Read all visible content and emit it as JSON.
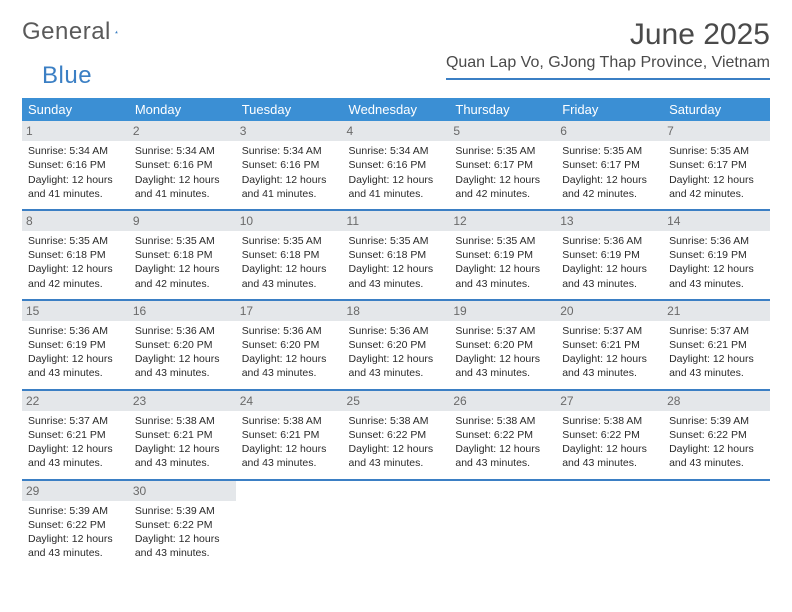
{
  "brand": {
    "part1": "General",
    "part2": "Blue"
  },
  "title": "June 2025",
  "location": "Quan Lap Vo, GJong Thap Province, Vietnam",
  "colors": {
    "header_bg": "#3b8fd4",
    "accent": "#3b7fc4",
    "daynum_bg": "#e4e7ea",
    "daynum_fg": "#6a6a6a",
    "text": "#2a2a2a",
    "title_fg": "#4a4a4a"
  },
  "weekdays": [
    "Sunday",
    "Monday",
    "Tuesday",
    "Wednesday",
    "Thursday",
    "Friday",
    "Saturday"
  ],
  "weeks": [
    [
      {
        "n": "1",
        "sr": "5:34 AM",
        "ss": "6:16 PM",
        "dl": "12 hours and 41 minutes."
      },
      {
        "n": "2",
        "sr": "5:34 AM",
        "ss": "6:16 PM",
        "dl": "12 hours and 41 minutes."
      },
      {
        "n": "3",
        "sr": "5:34 AM",
        "ss": "6:16 PM",
        "dl": "12 hours and 41 minutes."
      },
      {
        "n": "4",
        "sr": "5:34 AM",
        "ss": "6:16 PM",
        "dl": "12 hours and 41 minutes."
      },
      {
        "n": "5",
        "sr": "5:35 AM",
        "ss": "6:17 PM",
        "dl": "12 hours and 42 minutes."
      },
      {
        "n": "6",
        "sr": "5:35 AM",
        "ss": "6:17 PM",
        "dl": "12 hours and 42 minutes."
      },
      {
        "n": "7",
        "sr": "5:35 AM",
        "ss": "6:17 PM",
        "dl": "12 hours and 42 minutes."
      }
    ],
    [
      {
        "n": "8",
        "sr": "5:35 AM",
        "ss": "6:18 PM",
        "dl": "12 hours and 42 minutes."
      },
      {
        "n": "9",
        "sr": "5:35 AM",
        "ss": "6:18 PM",
        "dl": "12 hours and 42 minutes."
      },
      {
        "n": "10",
        "sr": "5:35 AM",
        "ss": "6:18 PM",
        "dl": "12 hours and 43 minutes."
      },
      {
        "n": "11",
        "sr": "5:35 AM",
        "ss": "6:18 PM",
        "dl": "12 hours and 43 minutes."
      },
      {
        "n": "12",
        "sr": "5:35 AM",
        "ss": "6:19 PM",
        "dl": "12 hours and 43 minutes."
      },
      {
        "n": "13",
        "sr": "5:36 AM",
        "ss": "6:19 PM",
        "dl": "12 hours and 43 minutes."
      },
      {
        "n": "14",
        "sr": "5:36 AM",
        "ss": "6:19 PM",
        "dl": "12 hours and 43 minutes."
      }
    ],
    [
      {
        "n": "15",
        "sr": "5:36 AM",
        "ss": "6:19 PM",
        "dl": "12 hours and 43 minutes."
      },
      {
        "n": "16",
        "sr": "5:36 AM",
        "ss": "6:20 PM",
        "dl": "12 hours and 43 minutes."
      },
      {
        "n": "17",
        "sr": "5:36 AM",
        "ss": "6:20 PM",
        "dl": "12 hours and 43 minutes."
      },
      {
        "n": "18",
        "sr": "5:36 AM",
        "ss": "6:20 PM",
        "dl": "12 hours and 43 minutes."
      },
      {
        "n": "19",
        "sr": "5:37 AM",
        "ss": "6:20 PM",
        "dl": "12 hours and 43 minutes."
      },
      {
        "n": "20",
        "sr": "5:37 AM",
        "ss": "6:21 PM",
        "dl": "12 hours and 43 minutes."
      },
      {
        "n": "21",
        "sr": "5:37 AM",
        "ss": "6:21 PM",
        "dl": "12 hours and 43 minutes."
      }
    ],
    [
      {
        "n": "22",
        "sr": "5:37 AM",
        "ss": "6:21 PM",
        "dl": "12 hours and 43 minutes."
      },
      {
        "n": "23",
        "sr": "5:38 AM",
        "ss": "6:21 PM",
        "dl": "12 hours and 43 minutes."
      },
      {
        "n": "24",
        "sr": "5:38 AM",
        "ss": "6:21 PM",
        "dl": "12 hours and 43 minutes."
      },
      {
        "n": "25",
        "sr": "5:38 AM",
        "ss": "6:22 PM",
        "dl": "12 hours and 43 minutes."
      },
      {
        "n": "26",
        "sr": "5:38 AM",
        "ss": "6:22 PM",
        "dl": "12 hours and 43 minutes."
      },
      {
        "n": "27",
        "sr": "5:38 AM",
        "ss": "6:22 PM",
        "dl": "12 hours and 43 minutes."
      },
      {
        "n": "28",
        "sr": "5:39 AM",
        "ss": "6:22 PM",
        "dl": "12 hours and 43 minutes."
      }
    ],
    [
      {
        "n": "29",
        "sr": "5:39 AM",
        "ss": "6:22 PM",
        "dl": "12 hours and 43 minutes."
      },
      {
        "n": "30",
        "sr": "5:39 AM",
        "ss": "6:22 PM",
        "dl": "12 hours and 43 minutes."
      },
      null,
      null,
      null,
      null,
      null
    ]
  ],
  "labels": {
    "sunrise": "Sunrise:",
    "sunset": "Sunset:",
    "daylight": "Daylight:"
  }
}
